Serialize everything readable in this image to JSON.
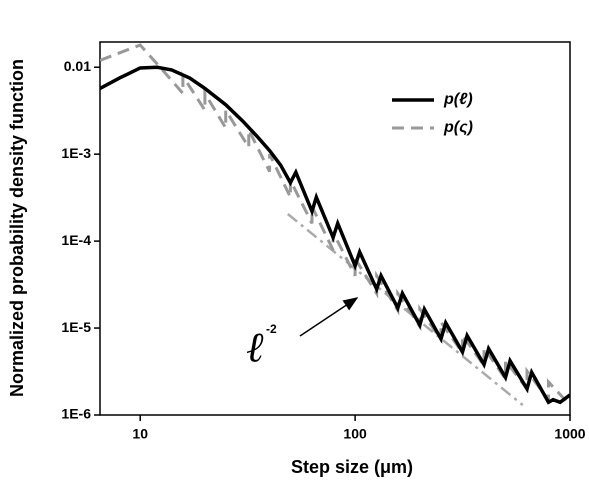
{
  "chart_data": {
    "type": "line",
    "xlabel": "Step size (μm)",
    "ylabel": "Normalized probability density function",
    "xscale": "log",
    "yscale": "log",
    "xlim": [
      6.5,
      1000
    ],
    "ylim": [
      1e-06,
      0.0195
    ],
    "xticks": [
      10,
      100,
      1000
    ],
    "yticks": [
      0.01,
      {
        "value": 0.001,
        "label": "1E-3"
      },
      {
        "value": 0.0001,
        "label": "1E-4"
      },
      {
        "value": 1e-05,
        "label": "1E-5"
      },
      {
        "value": 1e-06,
        "label": "1E-6"
      }
    ],
    "legend": "upper right",
    "series": [
      {
        "name": "p(ℓ)",
        "color": "#000000",
        "style": "solid",
        "x": [
          6.5,
          8,
          10,
          12,
          14,
          17,
          20,
          25,
          30,
          35,
          40,
          45,
          50,
          53,
          63,
          66,
          79,
          83,
          100,
          105,
          126,
          132,
          158,
          166,
          200,
          210,
          251,
          264,
          316,
          332,
          398,
          418,
          501,
          526,
          631,
          663,
          794,
          834,
          900,
          1000
        ],
        "values": [
          0.0057,
          0.0075,
          0.0098,
          0.01,
          0.0093,
          0.0075,
          0.0057,
          0.0037,
          0.0024,
          0.0016,
          0.0011,
          0.00075,
          0.00047,
          0.00062,
          0.00022,
          0.00032,
          0.00011,
          0.00016,
          5.2e-05,
          7.5e-05,
          2.8e-05,
          4e-05,
          1.7e-05,
          2.5e-05,
          1.08e-05,
          1.65e-05,
          7.5e-06,
          1.15e-05,
          5.3e-06,
          8.2e-06,
          3.8e-06,
          5.8e-06,
          2.7e-06,
          4.2e-06,
          2e-06,
          3.1e-06,
          1.4e-06,
          1.5e-06,
          1.4e-06,
          1.7e-06
        ]
      },
      {
        "name": "p(ς)",
        "color": "#999999",
        "style": "dashed",
        "x": [
          6.5,
          10,
          12.6,
          15.8,
          15.8,
          20,
          20,
          25,
          25,
          32,
          32,
          40,
          40,
          50,
          50,
          63,
          63,
          79,
          79,
          100,
          100,
          126,
          126,
          158,
          158,
          200,
          200,
          251,
          251,
          316,
          316,
          398,
          398,
          501,
          501,
          631,
          631,
          794,
          794,
          1000
        ],
        "values": [
          0.012,
          0.018,
          0.0095,
          0.005,
          0.0079,
          0.0032,
          0.005,
          0.002,
          0.0032,
          0.0012,
          0.0019,
          0.00063,
          0.001,
          0.00032,
          0.0005,
          0.00016,
          0.00025,
          7.9e-05,
          0.000126,
          4e-05,
          6.3e-05,
          2.5e-05,
          4e-05,
          1.6e-05,
          2.5e-05,
          1.05e-05,
          1.66e-05,
          7.4e-06,
          1.17e-05,
          5.2e-06,
          8.3e-06,
          3.7e-06,
          5.9e-06,
          2.6e-06,
          4.2e-06,
          2e-06,
          3.2e-06,
          1.5e-06,
          2.4e-06,
          1.3e-06
        ]
      }
    ],
    "reference_line": {
      "color": "#aaaaaa",
      "style": "dashdot",
      "x": [
        48.6,
        603
      ],
      "values": [
        0.000205,
        1.3e-06
      ]
    },
    "annotation": {
      "base": "ℓ",
      "exponent": "-2"
    }
  }
}
